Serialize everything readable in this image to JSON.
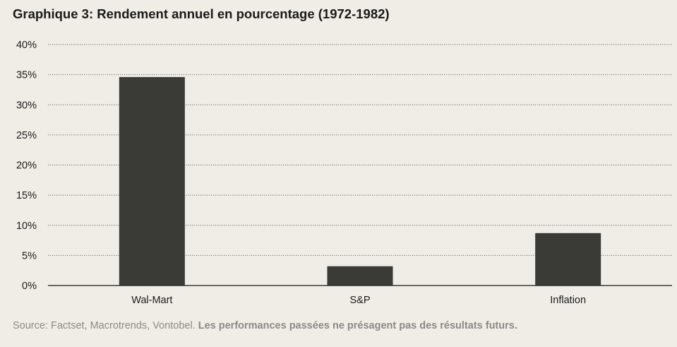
{
  "chart_data": {
    "type": "bar",
    "title": "Graphique 3: Rendement annuel en pourcentage (1972-1982)",
    "categories": [
      "Wal-Mart",
      "S&P",
      "Inflation"
    ],
    "values": [
      34.6,
      3.2,
      8.7
    ],
    "unit": "%",
    "ylim": [
      0,
      40
    ],
    "yticks": [
      0,
      5,
      10,
      15,
      20,
      25,
      30,
      35,
      40
    ],
    "ytick_labels": [
      "0%",
      "5%",
      "10%",
      "15%",
      "20%",
      "25%",
      "30%",
      "35%",
      "40%"
    ],
    "xlabel": "",
    "ylabel": "",
    "grid": true,
    "bar_color": "#3a3a37"
  },
  "source": {
    "prefix": "Source: Factset, Macrotrends, Vontobel.",
    "disclaimer": "Les performances passées ne présagent pas des résultats futurs."
  }
}
